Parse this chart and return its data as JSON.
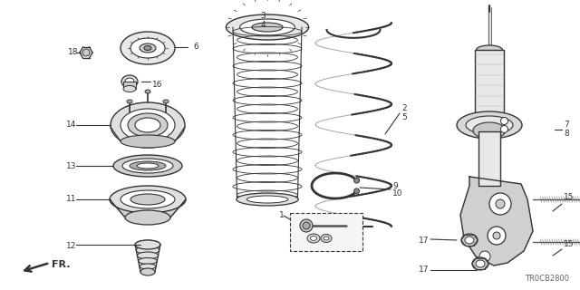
{
  "bg_color": "#ffffff",
  "line_color": "#333333",
  "diagram_code": "TR0CB2800",
  "figsize": [
    6.4,
    3.2
  ],
  "dpi": 100
}
